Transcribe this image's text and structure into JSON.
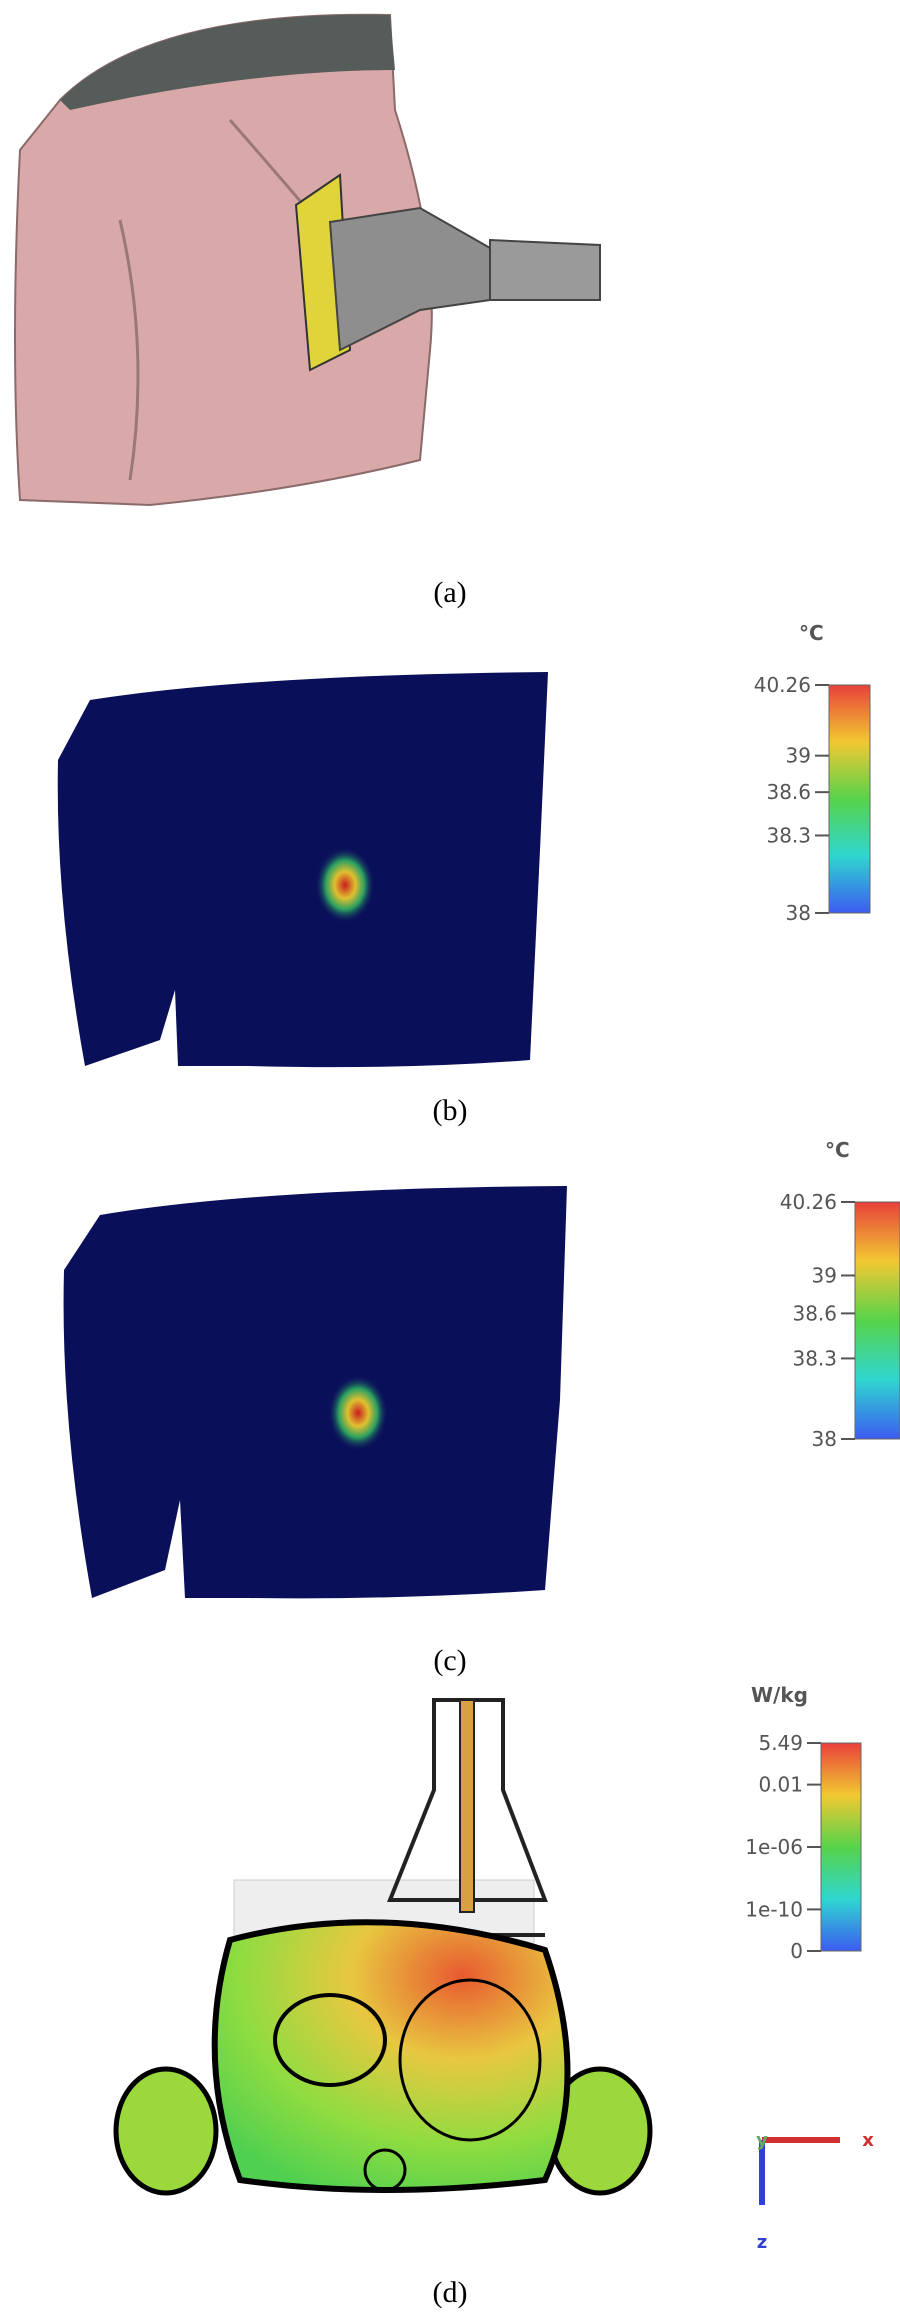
{
  "panels": [
    {
      "caption": "(a)"
    },
    {
      "caption": "(b)",
      "colorbar": {
        "unit": "°C",
        "ticks": [
          "40.26",
          "39",
          "38.6",
          "38.3",
          "38"
        ]
      }
    },
    {
      "caption": "(c)",
      "colorbar": {
        "unit": "°C",
        "ticks": [
          "40.26",
          "39",
          "38.6",
          "38.3",
          "38"
        ]
      }
    },
    {
      "caption": "(d)",
      "colorbar": {
        "unit": "W/kg",
        "ticks": [
          "5.49",
          "0.01",
          "1e-06",
          "1e-10",
          "0"
        ]
      },
      "axes": [
        "y",
        "x",
        "z"
      ]
    }
  ]
}
